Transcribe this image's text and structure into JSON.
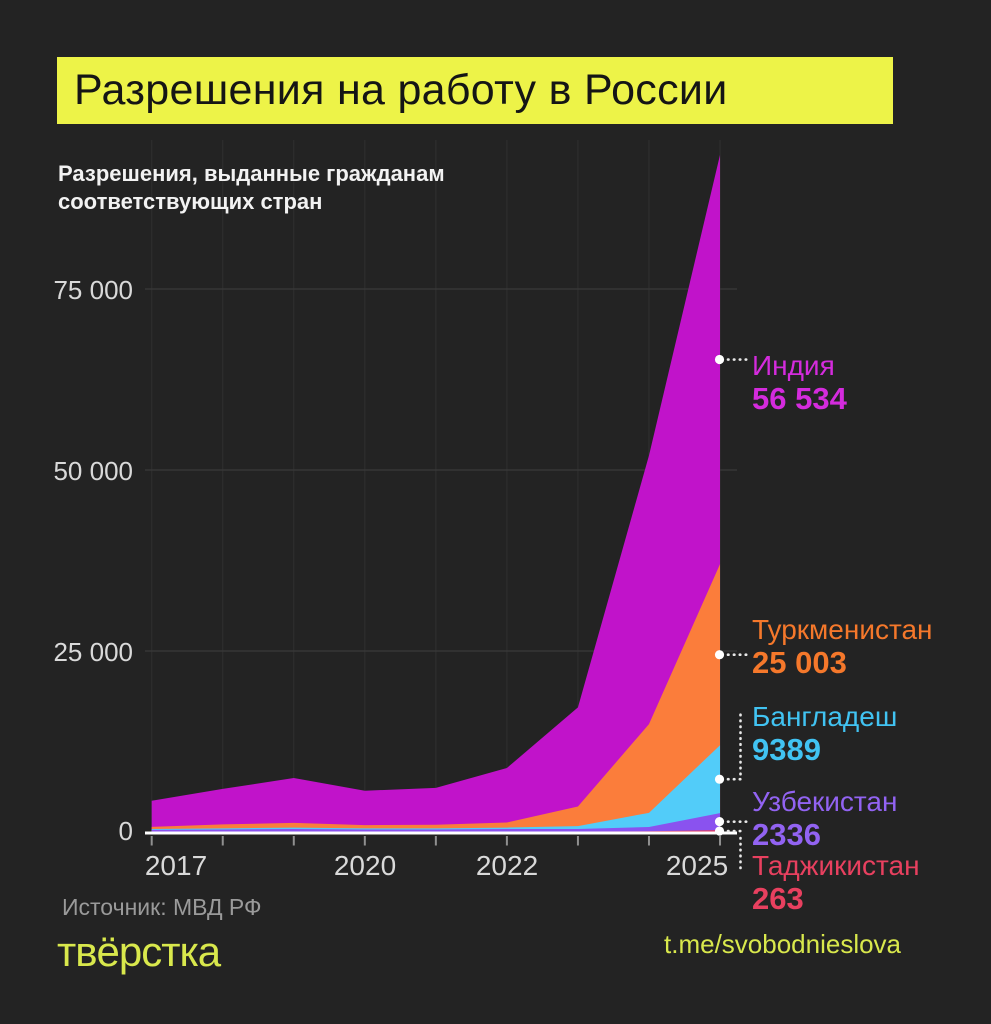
{
  "header": {
    "title": "Разрешения на работу в России"
  },
  "subtitle": {
    "line1": "Разрешения, выданные гражданам",
    "line2": "соответствующих стран"
  },
  "chart_data": {
    "type": "area",
    "stacked": true,
    "title": "Разрешения на работу в России",
    "x": [
      2017,
      2018,
      2019,
      2020,
      2021,
      2022,
      2023,
      2024,
      2025
    ],
    "x_tick_labels": [
      "2017",
      "2020",
      "2022",
      "2025"
    ],
    "y_ticks": [
      0,
      25000,
      50000,
      75000
    ],
    "y_tick_labels": [
      "0",
      "25 000",
      "50 000",
      "75 000"
    ],
    "ylim": [
      0,
      97000
    ],
    "grid": true,
    "legend_position": "right",
    "series": [
      {
        "name": "Таджикистан",
        "display_value": "263",
        "value_2025": 263,
        "values": [
          40,
          50,
          60,
          50,
          50,
          60,
          70,
          100,
          263
        ],
        "area_color": "#e23a5c",
        "text_color": "#e8405f"
      },
      {
        "name": "Узбекистан",
        "display_value": "2336",
        "value_2025": 2336,
        "values": [
          250,
          300,
          350,
          300,
          300,
          350,
          350,
          590,
          2336
        ],
        "area_color": "#8a52ef",
        "text_color": "#9263f2"
      },
      {
        "name": "Бангладеш",
        "display_value": "9389",
        "value_2025": 9389,
        "values": [
          120,
          150,
          200,
          150,
          150,
          200,
          400,
          1960,
          9389
        ],
        "area_color": "#52ccf9",
        "text_color": "#41c3f2"
      },
      {
        "name": "Туркменистан",
        "display_value": "25 003",
        "value_2025": 25003,
        "values": [
          300,
          550,
          650,
          450,
          500,
          700,
          2700,
          12250,
          25003
        ],
        "area_color": "#fb7d3b",
        "text_color": "#f5782b"
      },
      {
        "name": "Индия",
        "display_value": "56 534",
        "value_2025": 56534,
        "values": [
          3600,
          4900,
          6200,
          4750,
          5100,
          7530,
          13700,
          37100,
          56534
        ],
        "area_color": "#c113ca",
        "text_color": "#d42bdd"
      }
    ]
  },
  "source": "Источник: МВД РФ",
  "footer": {
    "logo": "твёрстка",
    "telegram": "t.me/svobodnieslova"
  },
  "colors": {
    "background": "#232323",
    "title_bg": "#edf348",
    "title_text": "#151515",
    "axis_line": "#ffffff",
    "tick": "#909090",
    "grid_h": "#3a3a3a",
    "grid_v": "#2e2e2e",
    "axis_label": "#d9d9d9",
    "source_text": "#9a9a9a",
    "brand_yellow": "#d9e84c",
    "leader": "#e8e8e8"
  }
}
